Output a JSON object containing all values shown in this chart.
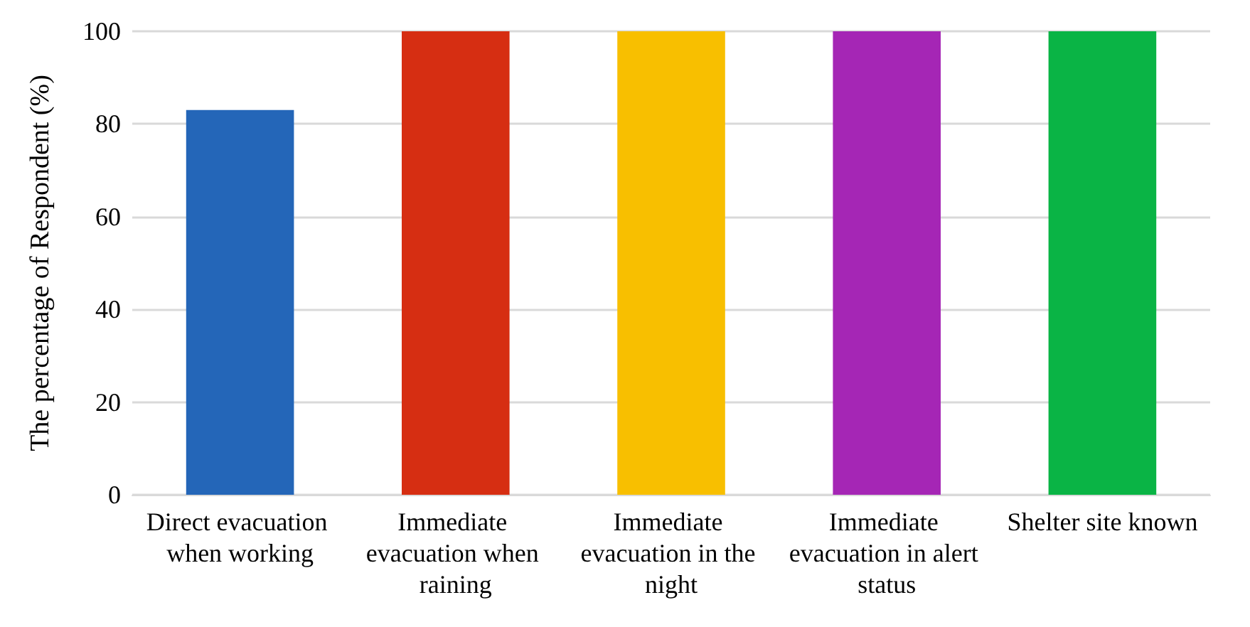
{
  "chart_data": {
    "type": "bar",
    "ylabel": "The percentage of Respondent (%)",
    "categories": [
      "Direct evacuation when working",
      "Immediate evacuation when raining",
      "Immediate evacuation in the night",
      "Immediate evacuation in alert status",
      "Shelter site known"
    ],
    "values": [
      83,
      100,
      100,
      100,
      100
    ],
    "colors": [
      "#2466b8",
      "#d62e12",
      "#f8bf00",
      "#a526b5",
      "#0ab445"
    ],
    "ylim": [
      0,
      100
    ],
    "yticks": [
      0,
      20,
      40,
      60,
      80,
      100
    ],
    "grid": "y"
  }
}
